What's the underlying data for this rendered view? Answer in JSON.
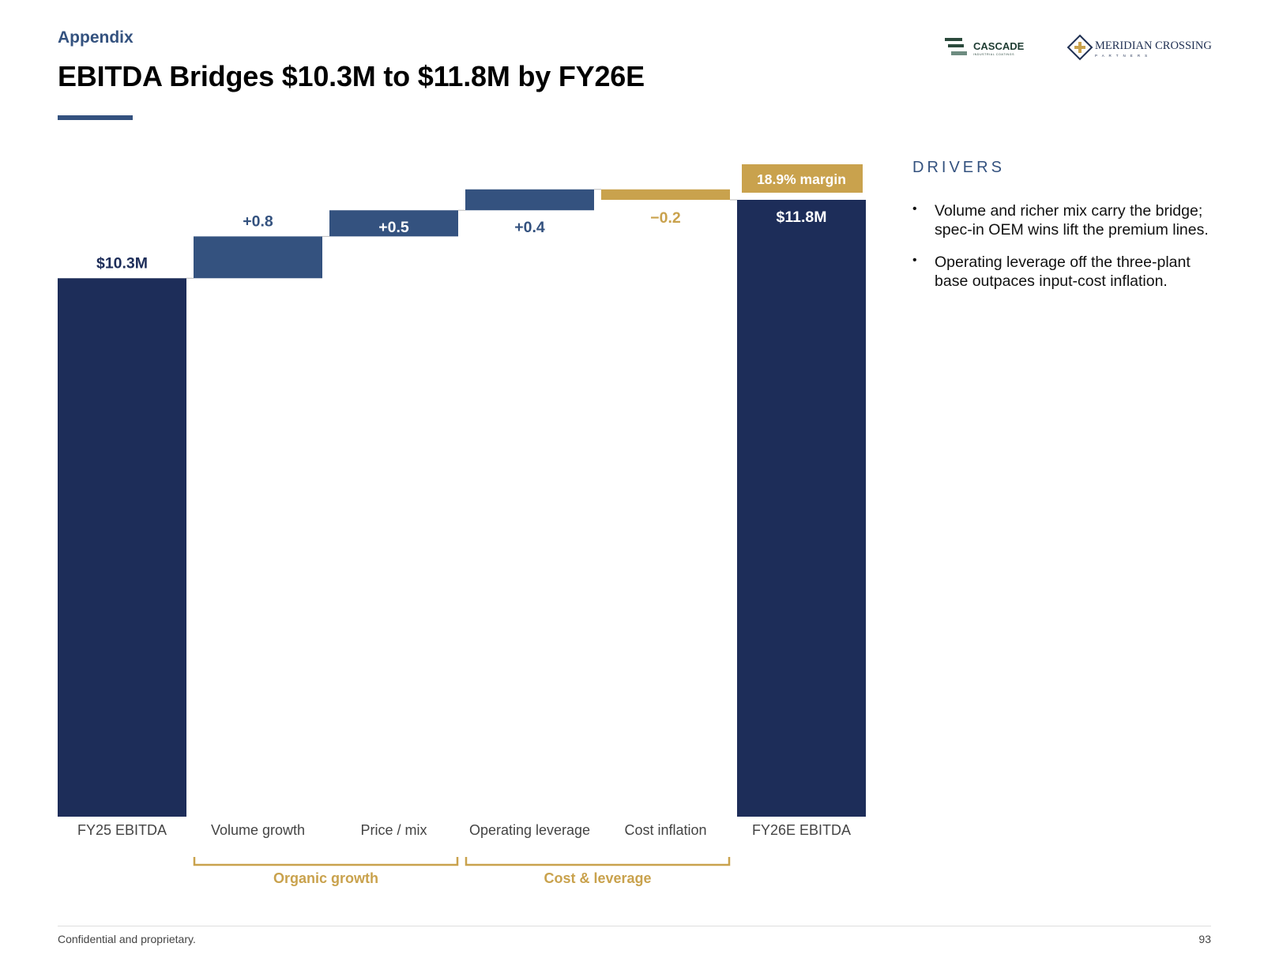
{
  "header": {
    "eyebrow": "Appendix",
    "title": "EBITDA Bridges $10.3M to $11.8M by FY26E"
  },
  "logos": {
    "cascade": {
      "name": "CASCADE",
      "tagline": "INDUSTRIAL COATINGS"
    },
    "meridian": {
      "name": "MERIDIAN CROSSING",
      "tagline": "P A R T N E R S"
    }
  },
  "colors": {
    "total": "#1d2d59",
    "increase": "#34527f",
    "decrease": "#c9a24d",
    "accent": "#34527f",
    "axis_label": "#444444"
  },
  "chart_data": {
    "type": "waterfall",
    "title": "",
    "unit": "$M",
    "ylim": [
      0,
      11.8
    ],
    "steps": [
      {
        "category": "FY25 EBITDA",
        "kind": "total",
        "value": 10.3,
        "label": "$10.3M"
      },
      {
        "category": "Volume growth",
        "kind": "delta",
        "value": 0.8,
        "label": "+0.8"
      },
      {
        "category": "Price / mix",
        "kind": "delta",
        "value": 0.5,
        "label": "+0.5"
      },
      {
        "category": "Operating leverage",
        "kind": "delta",
        "value": 0.4,
        "label": "+0.4"
      },
      {
        "category": "Cost inflation",
        "kind": "delta",
        "value": -0.2,
        "label": "−0.2"
      },
      {
        "category": "FY26E EBITDA",
        "kind": "total",
        "value": 11.8,
        "label": "$11.8M"
      }
    ],
    "callout": "18.9% margin",
    "groups": [
      {
        "label": "Organic growth",
        "from": 1,
        "to": 2
      },
      {
        "label": "Cost & leverage",
        "from": 3,
        "to": 4
      }
    ]
  },
  "drivers": {
    "heading": "DRIVERS",
    "items": [
      "Volume and richer mix carry the bridge; spec-in OEM wins lift the premium lines.",
      "Operating leverage off the three-plant base outpaces input-cost inflation."
    ]
  },
  "footer": {
    "confidential": "Confidential and proprietary.",
    "page_number": "93"
  }
}
